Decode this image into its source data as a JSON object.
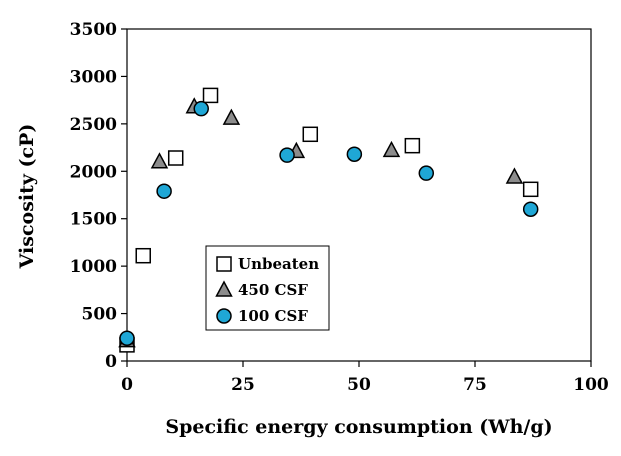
{
  "chart_data": {
    "type": "scatter",
    "title": "",
    "xlabel": "Specific energy consumption  (Wh/g)",
    "ylabel": "Viscosity  (cP)",
    "xlim": [
      0,
      100
    ],
    "ylim": [
      0,
      3500
    ],
    "xticks": [
      0,
      25,
      50,
      75,
      100
    ],
    "yticks": [
      0,
      500,
      1000,
      1500,
      2000,
      2500,
      3000,
      3500
    ],
    "grid": false,
    "legend_position": "lower-left",
    "series": [
      {
        "name": "Unbeaten",
        "marker": "square",
        "fill": "#ffffff",
        "stroke": "#000000",
        "points": [
          {
            "x": 0,
            "y": 170
          },
          {
            "x": 3.5,
            "y": 1110
          },
          {
            "x": 10.5,
            "y": 2140
          },
          {
            "x": 18,
            "y": 2800
          },
          {
            "x": 39.5,
            "y": 2390
          },
          {
            "x": 61.5,
            "y": 2270
          },
          {
            "x": 87,
            "y": 1810
          }
        ]
      },
      {
        "name": "450 CSF",
        "marker": "triangle",
        "fill": "#8c8c8c",
        "stroke": "#000000",
        "points": [
          {
            "x": 0,
            "y": 215
          },
          {
            "x": 7,
            "y": 2100
          },
          {
            "x": 14.5,
            "y": 2680
          },
          {
            "x": 22.5,
            "y": 2560
          },
          {
            "x": 36.5,
            "y": 2210
          },
          {
            "x": 57,
            "y": 2220
          },
          {
            "x": 83.5,
            "y": 1940
          }
        ]
      },
      {
        "name": "100 CSF",
        "marker": "circle",
        "fill": "#1fa7d6",
        "stroke": "#000000",
        "points": [
          {
            "x": 0,
            "y": 240
          },
          {
            "x": 8,
            "y": 1790
          },
          {
            "x": 16,
            "y": 2660
          },
          {
            "x": 34.5,
            "y": 2170
          },
          {
            "x": 49,
            "y": 2180
          },
          {
            "x": 64.5,
            "y": 1980
          },
          {
            "x": 87,
            "y": 1600
          }
        ]
      }
    ]
  }
}
